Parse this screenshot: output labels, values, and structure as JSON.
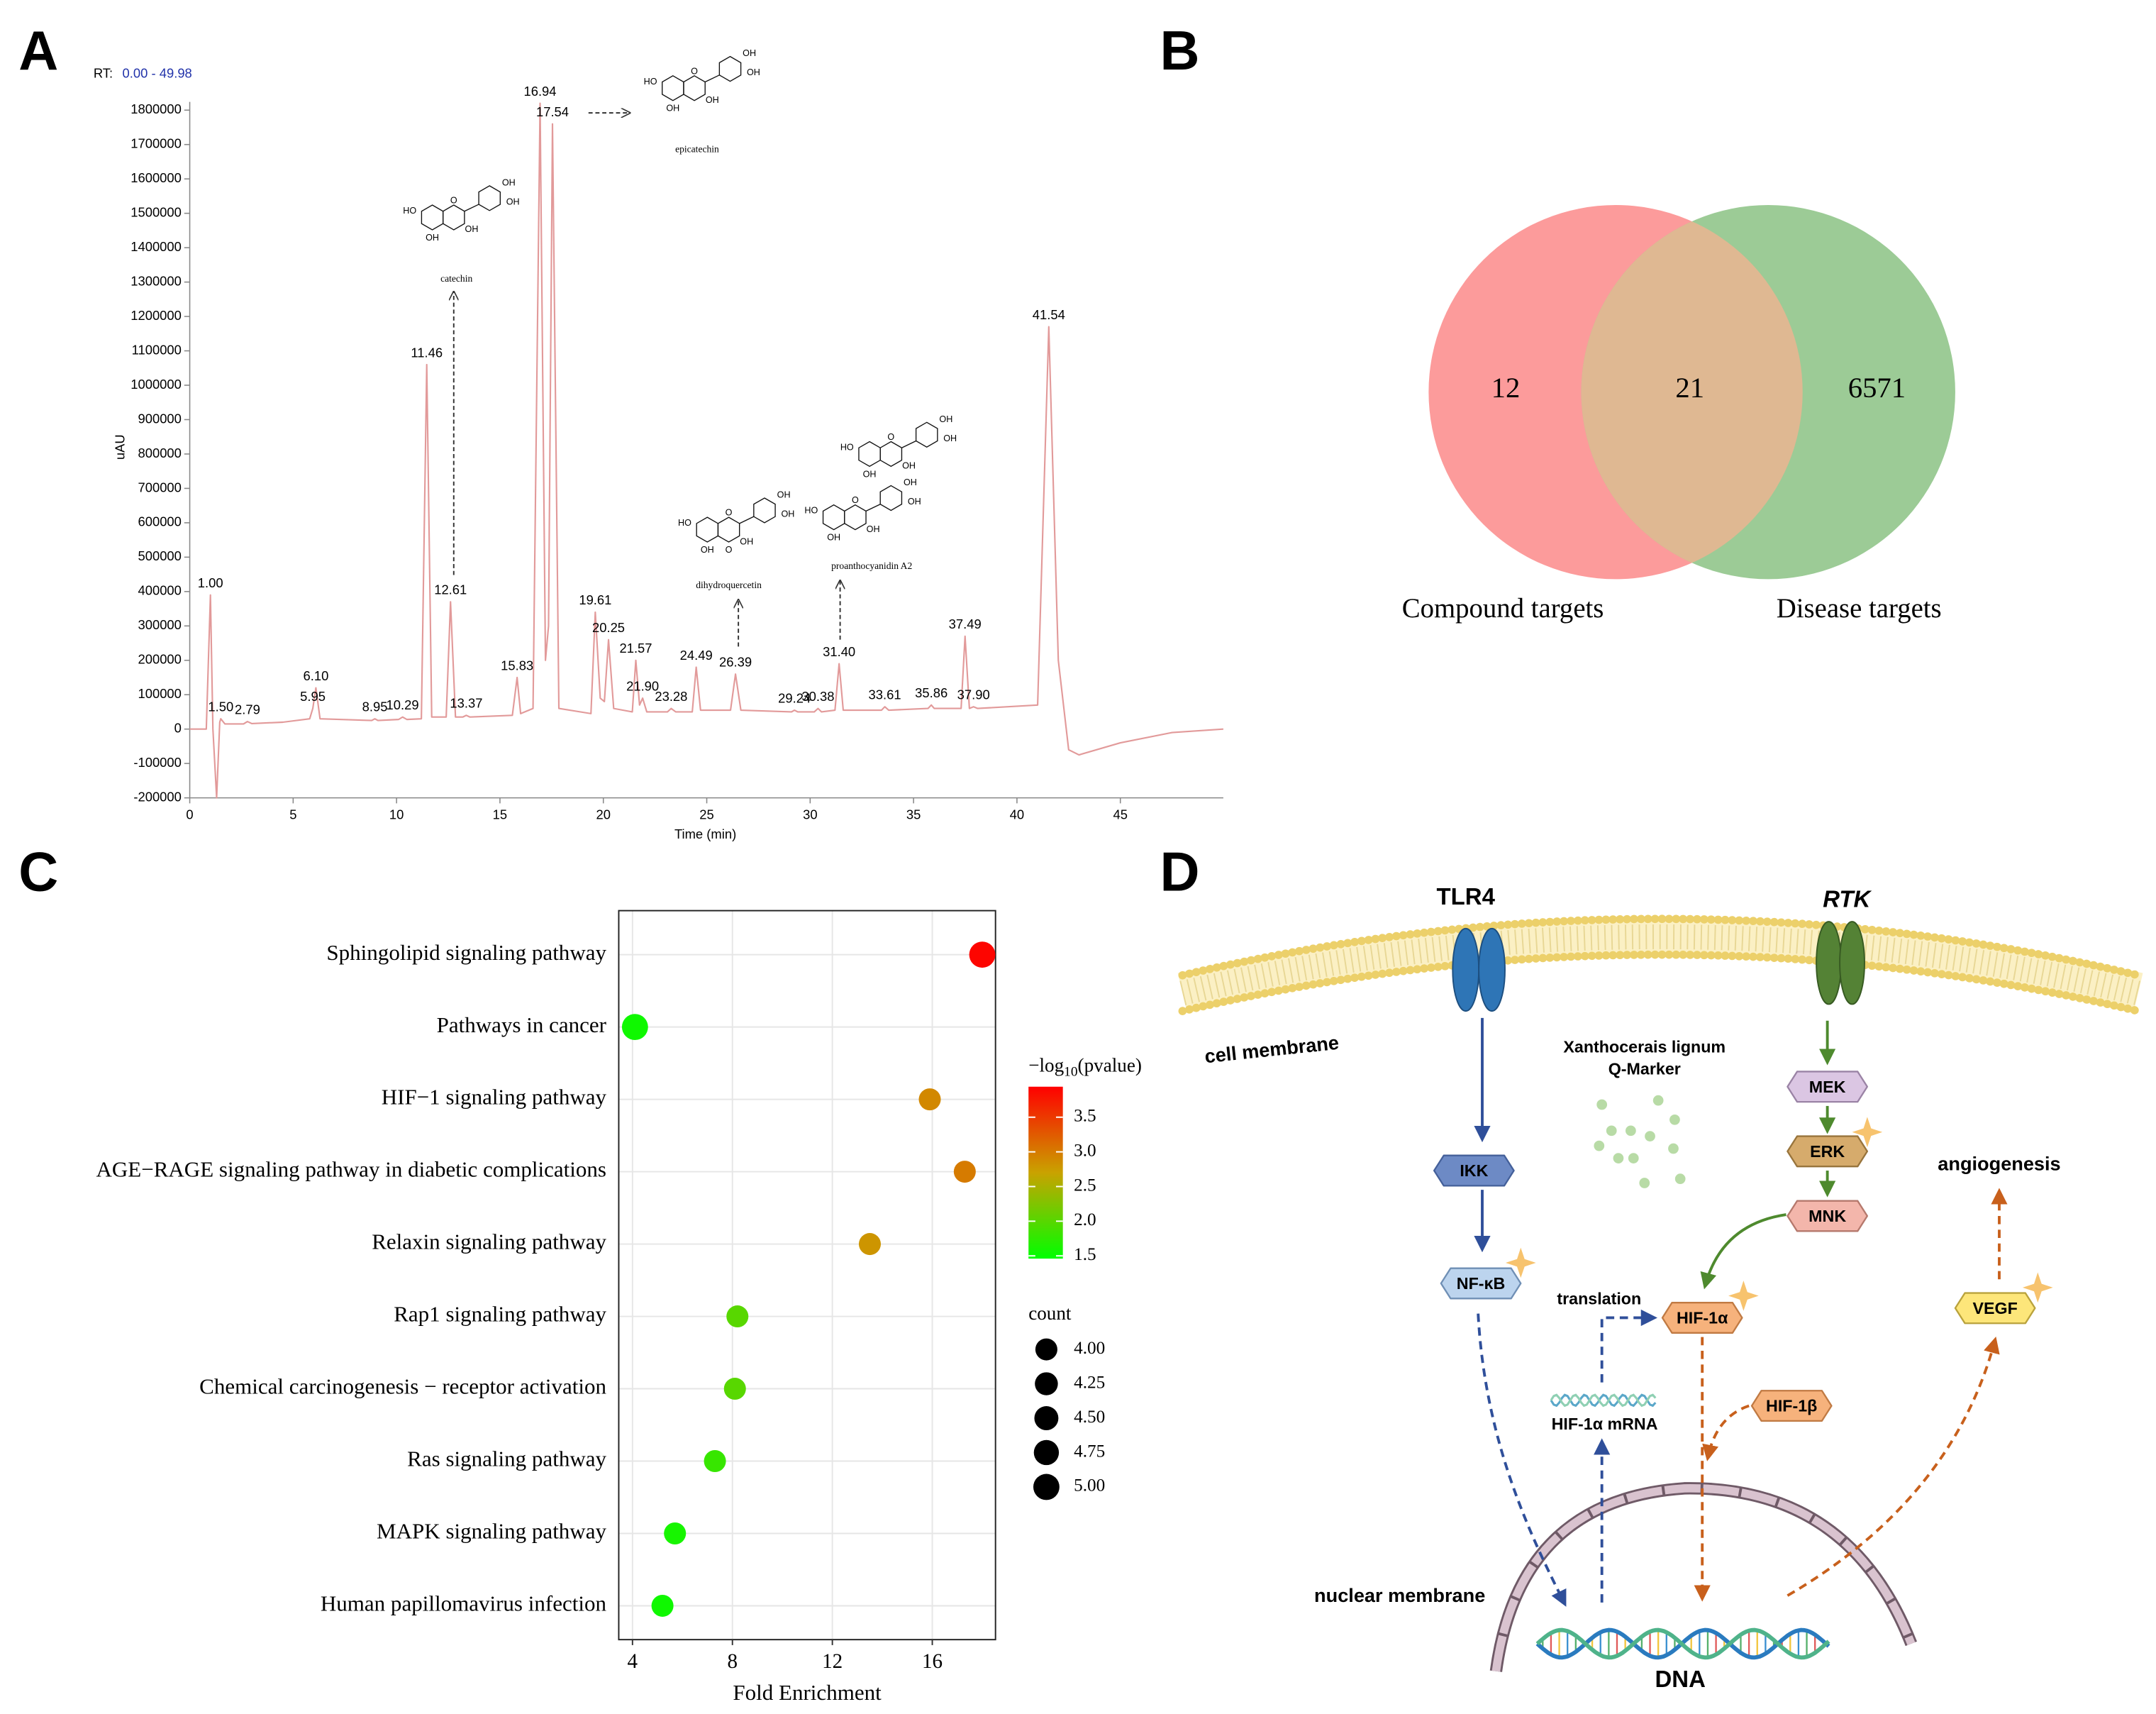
{
  "panels": [
    "A",
    "B",
    "C",
    "D"
  ],
  "chart_data": [
    {
      "type": "line",
      "range_label": "RT:",
      "range_text": "0.00 - 49.98",
      "xlabel": "Time (min)",
      "ylabel": "uAU",
      "xlim": [
        0,
        49.98
      ],
      "ylim": [
        -200000,
        1800000
      ],
      "xticks": [
        0,
        5,
        10,
        15,
        20,
        25,
        30,
        35,
        40,
        45
      ],
      "yticks": [
        -200000,
        -100000,
        0,
        100000,
        200000,
        300000,
        400000,
        500000,
        600000,
        700000,
        800000,
        900000,
        1000000,
        1100000,
        1200000,
        1300000,
        1400000,
        1500000,
        1600000,
        1700000,
        1800000
      ],
      "series": [
        {
          "color": "#e29a9a",
          "x": [
            0,
            0.8,
            1.0,
            1.12,
            1.3,
            1.45,
            1.5,
            1.7,
            2.6,
            2.79,
            3.0,
            4.5,
            5.8,
            5.95,
            6.1,
            6.3,
            8.8,
            8.95,
            9.1,
            10.1,
            10.29,
            10.5,
            11.2,
            11.46,
            11.7,
            12.4,
            12.61,
            12.85,
            13.2,
            13.37,
            13.55,
            15.6,
            15.83,
            16.0,
            16.6,
            16.94,
            17.2,
            17.35,
            17.54,
            17.85,
            19.4,
            19.61,
            19.85,
            20.05,
            20.25,
            20.5,
            21.4,
            21.57,
            21.75,
            21.9,
            22.1,
            23.1,
            23.28,
            23.5,
            24.3,
            24.49,
            24.7,
            26.15,
            26.39,
            26.65,
            29.1,
            29.24,
            29.4,
            30.2,
            30.38,
            30.55,
            31.2,
            31.4,
            31.6,
            33.45,
            33.61,
            33.8,
            35.7,
            35.86,
            36.0,
            37.3,
            37.49,
            37.7,
            37.9,
            38.1,
            41.0,
            41.54,
            42.0,
            42.5,
            43.0,
            45,
            47.5,
            49.98
          ],
          "values": [
            0,
            0,
            390000,
            0,
            -200000,
            20000,
            30000,
            15000,
            15000,
            22000,
            16000,
            20000,
            30000,
            60000,
            120000,
            30000,
            25000,
            30000,
            25000,
            28000,
            35000,
            28000,
            30000,
            1060000,
            35000,
            35000,
            370000,
            35000,
            35000,
            40000,
            35000,
            40000,
            150000,
            45000,
            60000,
            1820000,
            200000,
            300000,
            1760000,
            60000,
            45000,
            340000,
            90000,
            80000,
            260000,
            60000,
            50000,
            200000,
            70000,
            90000,
            50000,
            50000,
            60000,
            50000,
            50000,
            180000,
            55000,
            55000,
            160000,
            55000,
            50000,
            55000,
            50000,
            50000,
            60000,
            50000,
            55000,
            190000,
            55000,
            55000,
            65000,
            55000,
            60000,
            70000,
            60000,
            60000,
            270000,
            60000,
            65000,
            60000,
            70000,
            1170000,
            200000,
            -60000,
            -75000,
            -40000,
            -10000,
            0
          ]
        }
      ],
      "peaks": {
        "x": [
          1.0,
          1.5,
          2.79,
          5.95,
          6.1,
          8.95,
          10.29,
          11.46,
          12.61,
          13.37,
          15.83,
          16.94,
          17.54,
          19.61,
          20.25,
          21.57,
          21.9,
          23.28,
          24.49,
          26.39,
          29.24,
          30.38,
          31.4,
          33.61,
          35.86,
          37.49,
          37.9,
          41.54
        ],
        "values": [
          390000,
          30000,
          22000,
          60000,
          120000,
          30000,
          35000,
          1060000,
          370000,
          40000,
          150000,
          1820000,
          1760000,
          340000,
          260000,
          200000,
          90000,
          60000,
          180000,
          160000,
          55000,
          60000,
          190000,
          65000,
          70000,
          270000,
          65000,
          1170000
        ],
        "value_labels": [
          "1.00",
          "1.50",
          "2.79",
          "5.95",
          "6.10",
          "8.95",
          "10.29",
          "11.46",
          "12.61",
          "13.37",
          "15.83",
          "16.94",
          "17.54",
          "19.61",
          "20.25",
          "21.57",
          "21.90",
          "23.28",
          "24.49",
          "26.39",
          "29.24",
          "30.38",
          "31.40",
          "33.61",
          "35.86",
          "37.49",
          "37.90",
          "41.54"
        ]
      },
      "structures": [
        {
          "name": "catechin",
          "units": [
            [
              "HO",
              "O",
              "OH",
              "OH",
              "OH",
              "OH"
            ]
          ]
        },
        {
          "name": "epicatechin",
          "units": [
            [
              "HO",
              "O",
              "OH",
              "OH",
              "OH",
              "OH"
            ]
          ]
        },
        {
          "name": "dihydroquercetin",
          "units": [
            [
              "HO",
              "O",
              "OH",
              "OH",
              "OH",
              "OH",
              "O"
            ]
          ]
        },
        {
          "name": "proanthocyanidin A2",
          "units": [
            [
              "HO",
              "O",
              "OH",
              "OH",
              "OH",
              "OH"
            ],
            [
              "HO",
              "O",
              "OH",
              "OH",
              "OH",
              "OH"
            ]
          ]
        }
      ]
    },
    {
      "type": "venn",
      "sets": [
        {
          "name": "Compound targets",
          "color": "#fc9b9b"
        },
        {
          "name": "Disease targets",
          "color": "#9ccb96"
        }
      ],
      "overlap_color": "#dfb892",
      "values": [
        12,
        21,
        6571
      ]
    },
    {
      "type": "scatter",
      "xlabel": "Fold Enrichment",
      "categories": [
        "Sphingolipid signaling pathway",
        "Pathways in cancer",
        "HIF−1 signaling pathway",
        "AGE−RAGE signaling pathway in diabetic complications",
        "Relaxin signaling pathway",
        "Rap1 signaling pathway",
        "Chemical carcinogenesis − receptor activation",
        "Ras signaling pathway",
        "MAPK signaling pathway",
        "Human papillomavirus infection"
      ],
      "values": [
        18.0,
        4.1,
        15.9,
        17.3,
        13.5,
        8.2,
        8.1,
        7.3,
        5.7,
        5.2
      ],
      "pvalue": [
        3.9,
        1.55,
        2.9,
        3.0,
        2.8,
        2.0,
        2.0,
        1.8,
        1.6,
        1.55
      ],
      "count": [
        5,
        5,
        4,
        4,
        4,
        4,
        4,
        4,
        4,
        4
      ],
      "xlim": [
        3.45,
        18.53
      ],
      "xticks": [
        4,
        8,
        12,
        16
      ],
      "grid": true,
      "colorbar": {
        "title": [
          "−log",
          "10",
          "(pvalue)"
        ],
        "lim": [
          1.46,
          3.94
        ],
        "colors": [
          "#00ff00",
          "#c9a200",
          "#ff0000"
        ],
        "ticks": [
          {
            "value": 1.5,
            "label": "1.5"
          },
          {
            "value": 2.0,
            "label": "2.0"
          },
          {
            "value": 2.5,
            "label": "2.5"
          },
          {
            "value": 3.0,
            "label": "3.0"
          },
          {
            "value": 3.5,
            "label": "3.5"
          }
        ]
      },
      "size_legend": {
        "title": "count",
        "ticks": [
          {
            "value": 4,
            "label": "4.00"
          },
          {
            "value": 4.25,
            "label": "4.25"
          },
          {
            "value": 4.5,
            "label": "4.50"
          },
          {
            "value": 4.75,
            "label": "4.75"
          },
          {
            "value": 5,
            "label": "5.00"
          }
        ]
      }
    }
  ],
  "diagram": {
    "receptors": [
      "TLR4",
      "RTK"
    ],
    "nodes": [
      "IKK",
      "NF-κB",
      "MEK",
      "ERK",
      "MNK",
      "HIF-1α",
      "HIF-1β",
      "VEGF"
    ],
    "labels": {
      "cell_membrane": "cell membrane",
      "marker": [
        "Xanthocerais lignum",
        "Q-Marker"
      ],
      "angiogenesis": "angiogenesis",
      "translation": "translation",
      "mrna": "HIF-1α mRNA",
      "nuclear_membrane": "nuclear membrane",
      "dna": "DNA"
    }
  }
}
